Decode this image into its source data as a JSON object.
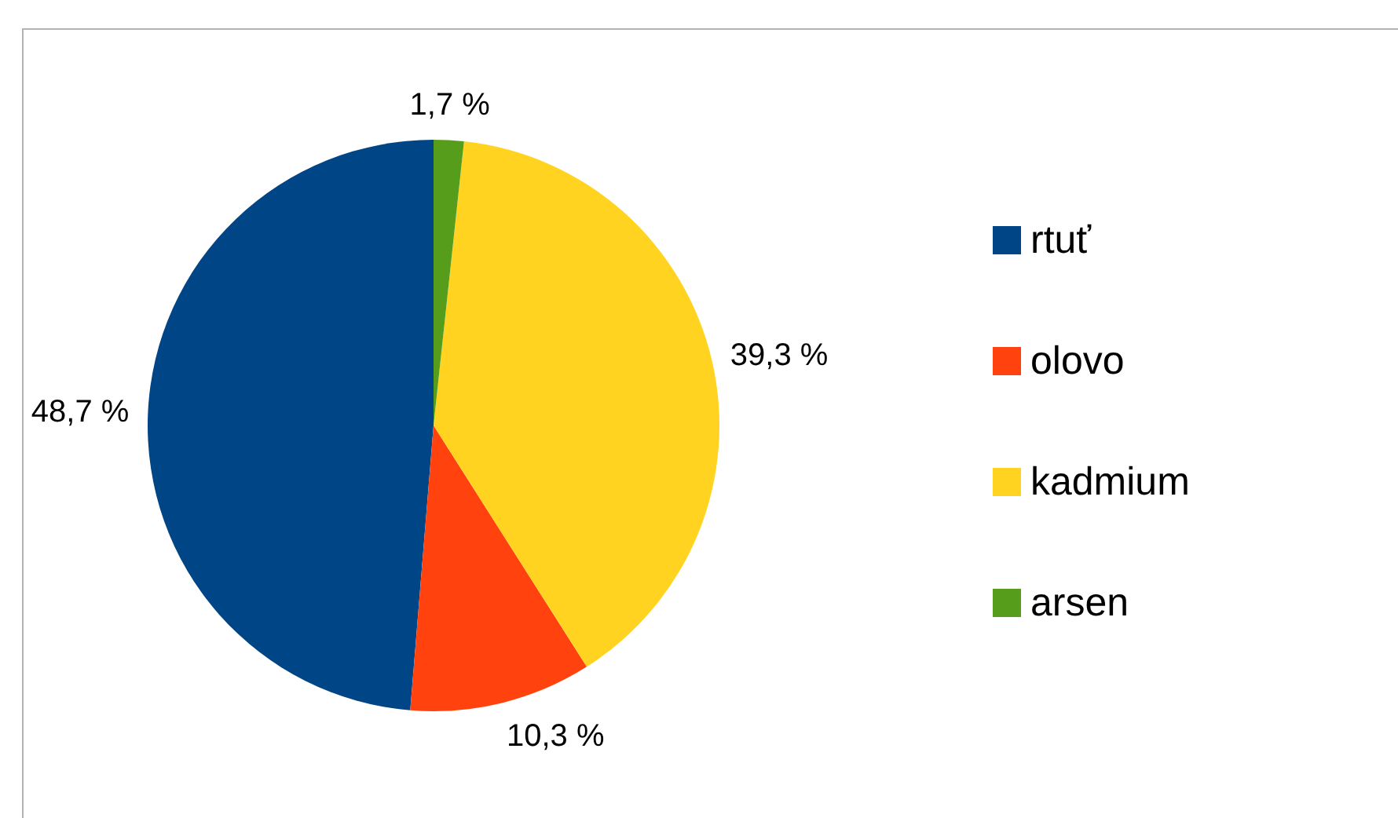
{
  "chart_data": {
    "type": "pie",
    "categories": [
      "rtuť",
      "olovo",
      "kadmium",
      "arsen"
    ],
    "values": [
      48.7,
      10.3,
      39.3,
      1.7
    ],
    "colors": [
      "#004586",
      "#ff420e",
      "#ffd320",
      "#579d1c"
    ],
    "value_labels": [
      "48,7 %",
      "10,3 %",
      "39,3 %",
      "1,7 %"
    ],
    "legend": "right"
  }
}
